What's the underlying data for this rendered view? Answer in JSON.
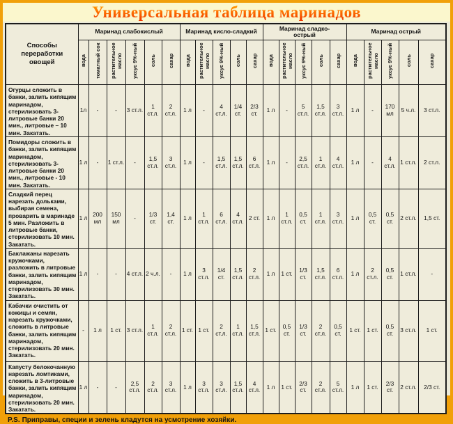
{
  "title": "Универсальная таблица маринадов",
  "appearance": {
    "frame_color": "#f1a009",
    "title_band_color": "#fbf7cd",
    "title_color_top": "#ffaa00",
    "title_color_bottom": "#e92e00",
    "paper_color": "#efecdb",
    "line_color": "#1c1c1c"
  },
  "table": {
    "corner_header": "Способы переработки овощей",
    "groups": [
      {
        "label": "Маринад слабокислый",
        "columns": [
          "вода",
          "томатный сок",
          "растительное масло",
          "уксус 9%-ный",
          "соль",
          "сахар"
        ]
      },
      {
        "label": "Маринад кисло-сладкий",
        "columns": [
          "вода",
          "растительное масло",
          "уксус 9%-ный",
          "соль",
          "сахар"
        ]
      },
      {
        "label": "Маринад сладко-\nострый",
        "columns": [
          "вода",
          "растительное масло",
          "уксус 9%-ный",
          "соль",
          "сахар"
        ]
      },
      {
        "label": "Маринад острый",
        "columns": [
          "вода",
          "растительное масло",
          "уксус 9%-ный",
          "соль",
          "сахар"
        ]
      }
    ],
    "rows": [
      {
        "method": "Огурцы сложить в банки, залить кипящим маринадом, стерилизовать 3-литровые банки 20 мин., литровые – 10 мин. Закатать.",
        "values": [
          "1л",
          "-",
          "-",
          "3 ст.л.",
          "1 ст.л.",
          "2 ст.л.",
          "1 л",
          "-",
          "4 ст.л.",
          "1/4 ст.",
          "2/3 ст.",
          "1 л",
          "-",
          "5 ст.л.",
          "1,5 ст.л.",
          "3 ст.л.",
          "1 л",
          "-",
          "170 мл",
          "5 ч.л.",
          "3 ст.л."
        ]
      },
      {
        "method": "Помидоры сложить в банки, залить кипящим маринадом, стерилизовать 3-литровые банки 20 мин., литровые - 10 мин. Закатать.",
        "values": [
          "1 л",
          "-",
          "1 ст.л.",
          "-",
          "1,5 ст.л.",
          "3 ст.л.",
          "1 л",
          "-",
          "1,5 ст.л.",
          "1,5 ст.л.",
          "6 ст.л.",
          "1 л",
          "-",
          "2,5 ст.л.",
          "1 ст.л.",
          "4 ст.л.",
          "1 л",
          "-",
          "4 ст.л.",
          "1 ст.л.",
          "2 ст.л."
        ]
      },
      {
        "method": "Сладкий перец нарезать дольками, выбирая семена, проварить в маринаде 5 мин. Разложить в литровые банки, стерилизовать 10 мин. Закатать.",
        "values": [
          "1 л",
          "200 мл",
          "150 мл",
          "-",
          "1/3 ст.",
          "1,4 ст.",
          "1 л",
          "1 ст.л.",
          "6 ст.л.",
          "4 ст.л.",
          "2 ст.",
          "1 л",
          "1 ст.л.",
          "0,5 ст.",
          "1 ст.л.",
          "3 ст.л.",
          "1 л",
          "0,5 ст.",
          "0,5 ст.",
          "2 ст.л.",
          "1,5 ст."
        ]
      },
      {
        "method": "Баклажаны нарезать кружочками, разложить в литровые банки, залить кипящим маринадом, стерилизовать 30 мин. Закатать.",
        "values": [
          "1 л",
          "-",
          "-",
          "4 ст.л.",
          "2 ч.л.",
          "-",
          "1 л",
          "3 ст.л.",
          "1/4 ст.",
          "1,5 ст.л.",
          "2 ст.л.",
          "1 л",
          "1 ст.",
          "1/3 ст.",
          "1,5 ст.л.",
          "6 ст.л.",
          "1 л",
          "2 ст.л.",
          "0,5 ст.",
          "1 ст.л.",
          "-"
        ]
      },
      {
        "method": "Кабачки очистить от кожицы и семян, нарезать кружочками, сложить в литровые банки, залить кипящим маринадом, стерилизовать 20 мин. Закатать.",
        "values": [
          "-",
          "1 л",
          "1 ст.",
          "3 ст.л.",
          "1 ст.л.",
          "2 ст.л.",
          "1 ст.",
          "1 ст.",
          "2 ст.л.",
          "1 ст.л.",
          "1,5 ст.л.",
          "1 ст.",
          "0,5 ст.",
          "1/3 ст.",
          "2 ст.л.",
          "0,5 ст.",
          "1 ст.",
          "1 ст.",
          "0,5 ст.",
          "3 ст.л.",
          "1 ст."
        ]
      },
      {
        "method": "Капусту белокочанную нарезать ломтиками, сложить в 3-литровые банки, залить кипящим маринадом, стерилизовать 20 мин. Закатать.",
        "values": [
          "1 л",
          "-",
          "-",
          "2,5 ст.л.",
          "2 ст.л.",
          "3 ст.л.",
          "1 л",
          "3 ст.л.",
          "3 ст.л.",
          "1,5 ст.л.",
          "4 ст.л.",
          "1 л",
          "1 ст.",
          "2/3 ст.",
          "2 ст.л.",
          "5 ст.л.",
          "1 л",
          "1 ст.",
          "2/3 ст.",
          "2 ст.л.",
          "2/3 ст."
        ]
      }
    ]
  },
  "footer": {
    "ps_label": "P.S.",
    "text": "Приправы, специи и зелень кладутся на усмотрение хозяйки."
  }
}
